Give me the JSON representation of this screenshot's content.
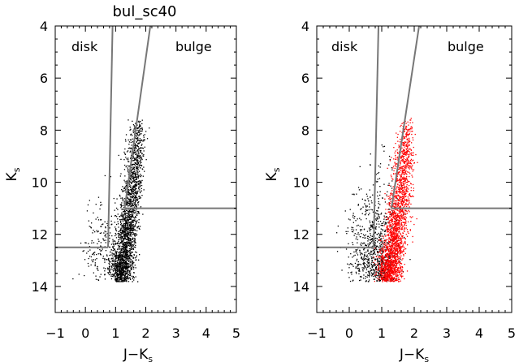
{
  "chart_data": [
    {
      "type": "scatter",
      "title": "bul_sc40",
      "xlabel": "J−K",
      "xlabel_sub": "s",
      "ylabel": "K",
      "ylabel_sub": "s",
      "xlim": [
        -1,
        5
      ],
      "ylim": [
        15,
        4
      ],
      "y_inverted": true,
      "xticks": [
        "−1",
        "0",
        "1",
        "2",
        "3",
        "4",
        "5"
      ],
      "yticks": [
        "4",
        "6",
        "8",
        "10",
        "12",
        "14"
      ],
      "annotations": [
        "disk",
        "bulge"
      ],
      "series": [
        {
          "color": "#000000",
          "points": [
            {
              "x": 1.15,
              "y": 13.4,
              "spread_x": 0.18,
              "spread_y": 0.5,
              "weight": 3
            },
            {
              "x": 1.35,
              "y": 12.0,
              "spread_x": 0.15,
              "spread_y": 0.8,
              "weight": 3
            },
            {
              "x": 1.55,
              "y": 10.3,
              "spread_x": 0.14,
              "spread_y": 0.9,
              "weight": 2
            },
            {
              "x": 1.7,
              "y": 8.6,
              "spread_x": 0.12,
              "spread_y": 0.7,
              "weight": 1
            },
            {
              "x": 0.6,
              "y": 12.8,
              "spread_x": 0.35,
              "spread_y": 1.0,
              "weight": 1
            }
          ]
        }
      ],
      "lines": [
        {
          "x": [
            0.75,
            0.9
          ],
          "y": [
            12.5,
            4
          ]
        },
        {
          "x": [
            -1,
            0.75
          ],
          "y": [
            12.5,
            12.5
          ]
        },
        {
          "x": [
            1.3,
            2.15
          ],
          "y": [
            11.0,
            4
          ]
        },
        {
          "x": [
            1.3,
            5
          ],
          "y": [
            11.0,
            11.0
          ]
        }
      ]
    },
    {
      "type": "scatter",
      "title": "",
      "xlabel": "J−K",
      "xlabel_sub": "s",
      "ylabel": "K",
      "ylabel_sub": "s",
      "xlim": [
        -1,
        5
      ],
      "ylim": [
        15,
        4
      ],
      "y_inverted": true,
      "xticks": [
        "−1",
        "0",
        "1",
        "2",
        "3",
        "4",
        "5"
      ],
      "yticks": [
        "4",
        "6",
        "8",
        "10",
        "12",
        "14"
      ],
      "annotations": [
        "disk",
        "bulge"
      ],
      "series": [
        {
          "color": "#000000",
          "points": [
            {
              "x": 0.6,
              "y": 12.8,
              "spread_x": 0.35,
              "spread_y": 1.0,
              "weight": 2
            },
            {
              "x": 1.0,
              "y": 13.4,
              "spread_x": 0.2,
              "spread_y": 0.5,
              "weight": 1
            },
            {
              "x": 0.9,
              "y": 11.5,
              "spread_x": 0.3,
              "spread_y": 1.2,
              "weight": 1
            }
          ]
        },
        {
          "color": "#ff0000",
          "points": [
            {
              "x": 1.2,
              "y": 13.4,
              "spread_x": 0.18,
              "spread_y": 0.5,
              "weight": 3
            },
            {
              "x": 1.4,
              "y": 12.0,
              "spread_x": 0.15,
              "spread_y": 0.8,
              "weight": 3
            },
            {
              "x": 1.6,
              "y": 10.3,
              "spread_x": 0.14,
              "spread_y": 0.9,
              "weight": 2
            },
            {
              "x": 1.75,
              "y": 8.6,
              "spread_x": 0.12,
              "spread_y": 0.7,
              "weight": 1
            }
          ]
        }
      ],
      "lines": [
        {
          "x": [
            0.75,
            0.9
          ],
          "y": [
            12.5,
            4
          ]
        },
        {
          "x": [
            -1,
            0.75
          ],
          "y": [
            12.5,
            12.5
          ]
        },
        {
          "x": [
            1.3,
            2.15
          ],
          "y": [
            11.0,
            4
          ]
        },
        {
          "x": [
            1.3,
            5
          ],
          "y": [
            11.0,
            11.0
          ]
        }
      ]
    }
  ]
}
